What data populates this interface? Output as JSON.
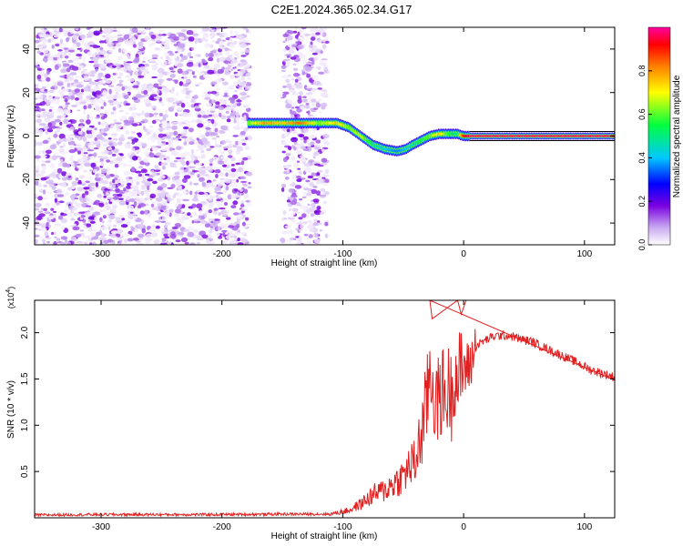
{
  "title": "C2E1.2024.365.02.34.G17",
  "chart_data": [
    {
      "type": "heatmap",
      "xlabel": "Height of straight line (km)",
      "ylabel": "Frequency (Hz)",
      "xlim": [
        -355,
        125
      ],
      "ylim": [
        -50,
        50
      ],
      "xticks": [
        -300,
        -200,
        -100,
        0,
        100
      ],
      "yticks": [
        -40,
        -20,
        0,
        20,
        40
      ],
      "colorbar": {
        "label": "Normalized spectral amplitude",
        "range": [
          0.0,
          1.0
        ],
        "ticks": [
          0.0,
          0.2,
          0.4,
          0.6,
          0.8
        ],
        "colormap": [
          "#ffffff",
          "#c8a8f0",
          "#7a00e0",
          "#0000ff",
          "#00c8ff",
          "#00ff40",
          "#ffff00",
          "#ff8000",
          "#ff0000",
          "#ff00a0"
        ]
      },
      "noise_region_segments": [
        [
          -355,
          -177
        ],
        [
          -150,
          -113
        ]
      ],
      "ridge": {
        "x": [
          -178,
          -165,
          -150,
          -135,
          -120,
          -105,
          -95,
          -85,
          -75,
          -65,
          -55,
          -48,
          -42,
          -35,
          -28,
          -20,
          -12,
          -5,
          0,
          5,
          125
        ],
        "y": [
          6,
          6,
          6,
          6,
          6,
          6,
          4,
          0,
          -4,
          -6,
          -7,
          -6,
          -4,
          -2,
          0,
          1,
          1,
          1,
          0,
          0,
          0
        ],
        "peak_amplitude": [
          0.6,
          0.75,
          0.7,
          0.8,
          0.6,
          0.7,
          0.6,
          0.65,
          0.5,
          0.45,
          0.4,
          0.45,
          0.5,
          0.55,
          0.6,
          0.7,
          0.55,
          0.5,
          0.9,
          0.95,
          0.95
        ]
      },
      "grid": false
    },
    {
      "type": "line",
      "xlabel": "Height of straight line (km)",
      "ylabel": "SNR (10 * v/v)",
      "y_multiplier": "(x10^4)",
      "xlim": [
        -355,
        125
      ],
      "ylim": [
        0,
        23500
      ],
      "xticks": [
        -300,
        -200,
        -100,
        0,
        100
      ],
      "yticks": [
        5000,
        10000,
        15000,
        20000
      ],
      "ytick_labels": [
        "0.5",
        "1.0",
        "1.5",
        "2.0"
      ],
      "series": [
        {
          "color": "#e02020",
          "x": [
            -355,
            -300,
            -200,
            -150,
            -110,
            -95,
            -85,
            -75,
            -65,
            -60,
            -55,
            -50,
            -45,
            -40,
            -35,
            -32,
            -30,
            -28,
            -26,
            -24,
            -22,
            -20,
            -18,
            -15,
            -12,
            -10,
            -8,
            -5,
            -3,
            0,
            2,
            5,
            8,
            10,
            15,
            20,
            25,
            30,
            35,
            40,
            45,
            50,
            55,
            60,
            65,
            70,
            75,
            80,
            85,
            90,
            95,
            100,
            105,
            110,
            115,
            120,
            125
          ],
          "y": [
            300,
            350,
            350,
            400,
            400,
            800,
            1500,
            2500,
            3000,
            3500,
            4000,
            4500,
            5500,
            6000,
            9000,
            11000,
            13000,
            16000,
            15000,
            13000,
            12000,
            13000,
            14000,
            13000,
            14000,
            13000,
            16000,
            15000,
            15500,
            16500,
            16000,
            16500,
            17500,
            18500,
            19000,
            19300,
            19600,
            19700,
            19700,
            19600,
            19400,
            19200,
            19100,
            18800,
            18500,
            18200,
            17900,
            17600,
            17300,
            17000,
            16700,
            16300,
            16000,
            15800,
            15600,
            15400,
            15200
          ]
        }
      ],
      "grid": false
    }
  ]
}
